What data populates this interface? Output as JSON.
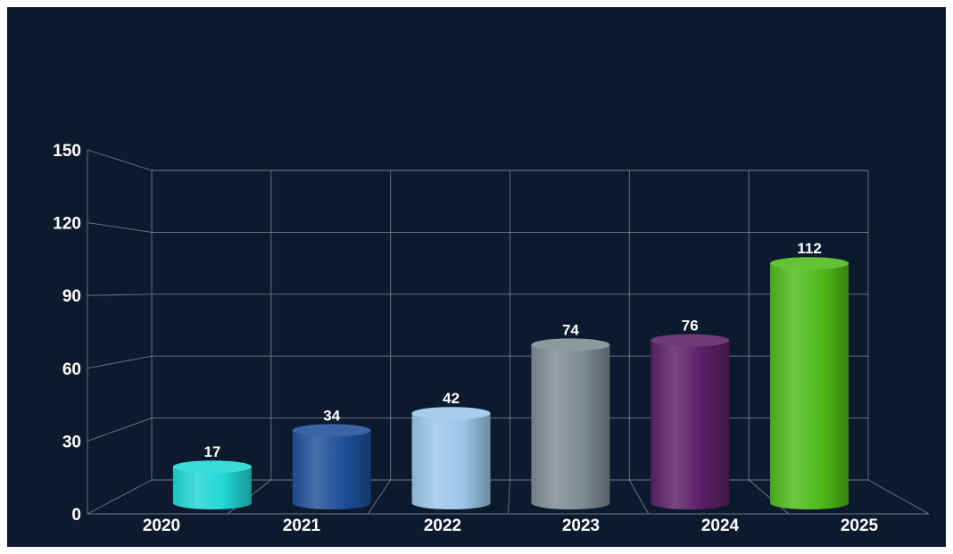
{
  "chart_data": {
    "type": "bar",
    "style": "3d-cylinder",
    "categories": [
      "2020",
      "2021",
      "2022",
      "2023",
      "2024",
      "2025"
    ],
    "values": [
      17,
      34,
      42,
      74,
      76,
      112
    ],
    "data_labels": [
      "17",
      "34",
      "42",
      "74",
      "76",
      "112"
    ],
    "colors": [
      "#1fd6d6",
      "#1f4f99",
      "#9cc6ea",
      "#7e8b93",
      "#5a1f66",
      "#4fba1a"
    ],
    "y_ticks": [
      "0",
      "30",
      "60",
      "90",
      "120",
      "150"
    ],
    "ylim": [
      0,
      150
    ],
    "grid": true,
    "legend": false,
    "background": "#0c1a2e"
  }
}
